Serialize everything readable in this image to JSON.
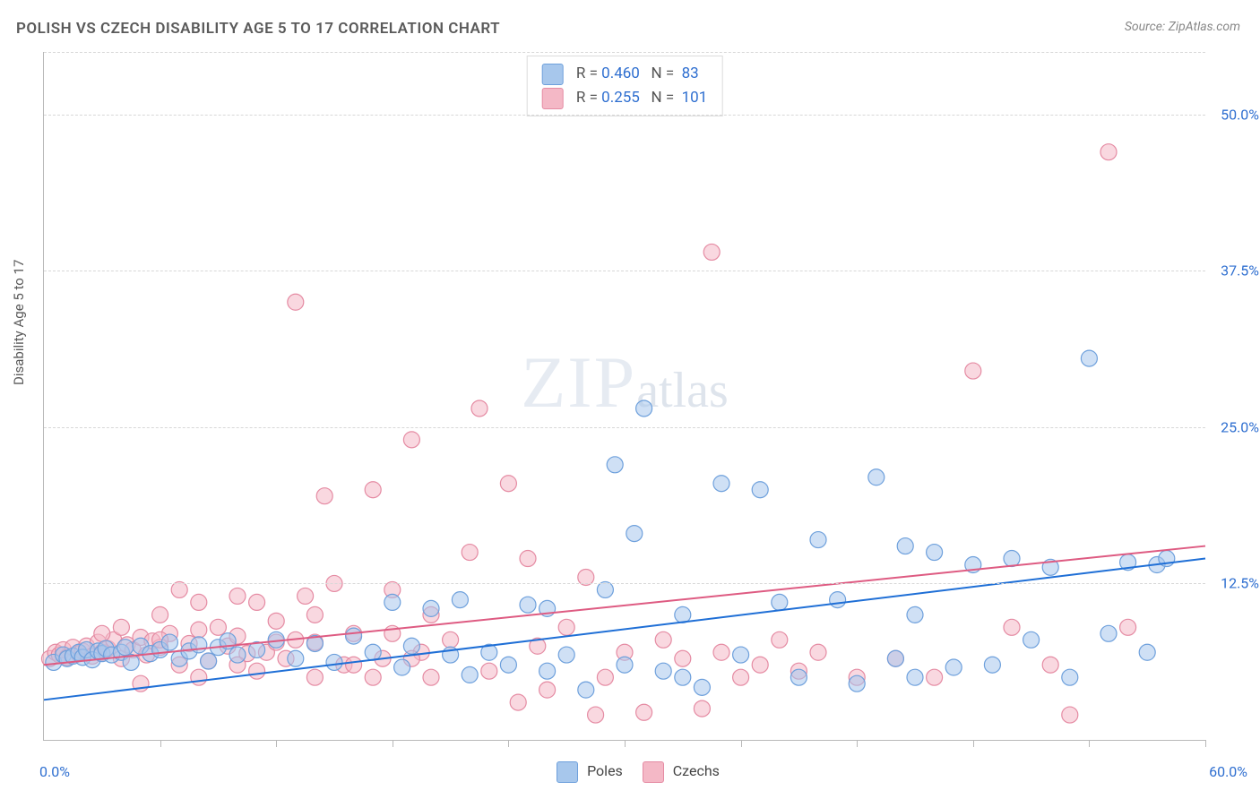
{
  "title": "POLISH VS CZECH DISABILITY AGE 5 TO 17 CORRELATION CHART",
  "source": "Source: ZipAtlas.com",
  "ylabel": "Disability Age 5 to 17",
  "watermark_zip": "ZIP",
  "watermark_atlas": "atlas",
  "chart": {
    "type": "scatter",
    "background_color": "#ffffff",
    "grid_color": "#d8d8d8",
    "axis_color": "#b8b8b8",
    "label_color": "#2f6fd0",
    "xlim": [
      0,
      60
    ],
    "ylim": [
      0,
      55
    ],
    "ytick_values": [
      12.5,
      25.0,
      37.5,
      50.0
    ],
    "ytick_labels": [
      "12.5%",
      "25.0%",
      "37.5%",
      "50.0%"
    ],
    "xtick_values": [
      6,
      12,
      18,
      24,
      30,
      36,
      42,
      48,
      54,
      60
    ],
    "x_origin_label": "0.0%",
    "x_max_label": "60.0%",
    "marker_radius": 9,
    "marker_opacity": 0.55,
    "line_width": 2
  },
  "series": {
    "poles": {
      "label": "Poles",
      "color_fill": "#a7c7ec",
      "color_stroke": "#6ea0dc",
      "line_color": "#1f6fd6",
      "R": "0.460",
      "N": "83",
      "trend_y_at_x0": 3.2,
      "trend_y_at_x60": 14.5,
      "points": [
        [
          0.5,
          6.2
        ],
        [
          1,
          6.8
        ],
        [
          1.2,
          6.5
        ],
        [
          1.5,
          6.7
        ],
        [
          1.8,
          7.0
        ],
        [
          2,
          6.6
        ],
        [
          2.2,
          7.2
        ],
        [
          2.5,
          6.4
        ],
        [
          2.8,
          7.1
        ],
        [
          3,
          6.9
        ],
        [
          3.2,
          7.3
        ],
        [
          3.5,
          6.8
        ],
        [
          4,
          7.0
        ],
        [
          4.2,
          7.4
        ],
        [
          4.5,
          6.2
        ],
        [
          5,
          7.5
        ],
        [
          5.5,
          6.9
        ],
        [
          6,
          7.2
        ],
        [
          6.5,
          7.8
        ],
        [
          7,
          6.5
        ],
        [
          7.5,
          7.1
        ],
        [
          8,
          7.6
        ],
        [
          8.5,
          6.3
        ],
        [
          9,
          7.4
        ],
        [
          9.5,
          7.9
        ],
        [
          10,
          6.8
        ],
        [
          11,
          7.2
        ],
        [
          12,
          8.0
        ],
        [
          13,
          6.5
        ],
        [
          14,
          7.7
        ],
        [
          15,
          6.2
        ],
        [
          16,
          8.3
        ],
        [
          17,
          7.0
        ],
        [
          18,
          11.0
        ],
        [
          18.5,
          5.8
        ],
        [
          19,
          7.5
        ],
        [
          20,
          10.5
        ],
        [
          21,
          6.8
        ],
        [
          21.5,
          11.2
        ],
        [
          22,
          5.2
        ],
        [
          23,
          7.0
        ],
        [
          24,
          6.0
        ],
        [
          25,
          10.8
        ],
        [
          26,
          5.5
        ],
        [
          27,
          6.8
        ],
        [
          28,
          4.0
        ],
        [
          29,
          12.0
        ],
        [
          29.5,
          22.0
        ],
        [
          30,
          6.0
        ],
        [
          30.5,
          16.5
        ],
        [
          31,
          26.5
        ],
        [
          32,
          5.5
        ],
        [
          33,
          10.0
        ],
        [
          34,
          4.2
        ],
        [
          35,
          20.5
        ],
        [
          36,
          6.8
        ],
        [
          37,
          20.0
        ],
        [
          38,
          11.0
        ],
        [
          39,
          5.0
        ],
        [
          40,
          16.0
        ],
        [
          41,
          11.2
        ],
        [
          42,
          4.5
        ],
        [
          43,
          21.0
        ],
        [
          44,
          6.5
        ],
        [
          44.5,
          15.5
        ],
        [
          45,
          10.0
        ],
        [
          46,
          15.0
        ],
        [
          47,
          5.8
        ],
        [
          48,
          14.0
        ],
        [
          49,
          6.0
        ],
        [
          50,
          14.5
        ],
        [
          51,
          8.0
        ],
        [
          52,
          13.8
        ],
        [
          53,
          5.0
        ],
        [
          54,
          30.5
        ],
        [
          55,
          8.5
        ],
        [
          56,
          14.2
        ],
        [
          57,
          7.0
        ],
        [
          57.5,
          14.0
        ],
        [
          58,
          14.5
        ],
        [
          45,
          5.0
        ],
        [
          33,
          5.0
        ],
        [
          26,
          10.5
        ]
      ]
    },
    "czechs": {
      "label": "Czechs",
      "color_fill": "#f4b8c6",
      "color_stroke": "#e58ba3",
      "line_color": "#de5b82",
      "R": "0.255",
      "N": "101",
      "trend_y_at_x0": 6.0,
      "trend_y_at_x60": 15.5,
      "points": [
        [
          0.3,
          6.5
        ],
        [
          0.6,
          7.0
        ],
        [
          0.8,
          6.8
        ],
        [
          1,
          7.2
        ],
        [
          1.2,
          6.6
        ],
        [
          1.5,
          7.4
        ],
        [
          1.8,
          6.9
        ],
        [
          2,
          7.1
        ],
        [
          2.2,
          7.5
        ],
        [
          2.5,
          6.7
        ],
        [
          2.8,
          7.8
        ],
        [
          3,
          7.0
        ],
        [
          3.3,
          7.3
        ],
        [
          3.6,
          8.0
        ],
        [
          4,
          6.5
        ],
        [
          4.3,
          7.6
        ],
        [
          4.6,
          7.2
        ],
        [
          5,
          8.2
        ],
        [
          5.3,
          6.8
        ],
        [
          5.6,
          7.9
        ],
        [
          6,
          7.4
        ],
        [
          6.5,
          8.5
        ],
        [
          7,
          6.0
        ],
        [
          7.5,
          7.7
        ],
        [
          8,
          8.8
        ],
        [
          8.5,
          6.3
        ],
        [
          9,
          9.0
        ],
        [
          9.5,
          7.5
        ],
        [
          10,
          8.3
        ],
        [
          10.5,
          6.9
        ],
        [
          11,
          11.0
        ],
        [
          11.5,
          7.0
        ],
        [
          12,
          9.5
        ],
        [
          12.5,
          6.5
        ],
        [
          13,
          35.0
        ],
        [
          13.5,
          11.5
        ],
        [
          14,
          7.8
        ],
        [
          14.5,
          19.5
        ],
        [
          15,
          12.5
        ],
        [
          15.5,
          6.0
        ],
        [
          16,
          8.5
        ],
        [
          17,
          20.0
        ],
        [
          17.5,
          6.5
        ],
        [
          18,
          12.0
        ],
        [
          19,
          24.0
        ],
        [
          19.5,
          7.0
        ],
        [
          20,
          10.0
        ],
        [
          21,
          8.0
        ],
        [
          22,
          15.0
        ],
        [
          22.5,
          26.5
        ],
        [
          23,
          5.5
        ],
        [
          24,
          20.5
        ],
        [
          24.5,
          3.0
        ],
        [
          25,
          14.5
        ],
        [
          25.5,
          7.5
        ],
        [
          26,
          4.0
        ],
        [
          27,
          9.0
        ],
        [
          28,
          13.0
        ],
        [
          28.5,
          2.0
        ],
        [
          29,
          5.0
        ],
        [
          30,
          7.0
        ],
        [
          31,
          2.2
        ],
        [
          32,
          8.0
        ],
        [
          33,
          6.5
        ],
        [
          34,
          2.5
        ],
        [
          34.5,
          39.0
        ],
        [
          35,
          7.0
        ],
        [
          36,
          5.0
        ],
        [
          37,
          6.0
        ],
        [
          38,
          8.0
        ],
        [
          39,
          5.5
        ],
        [
          40,
          7.0
        ],
        [
          42,
          5.0
        ],
        [
          44,
          6.5
        ],
        [
          46,
          5.0
        ],
        [
          48,
          29.5
        ],
        [
          50,
          9.0
        ],
        [
          52,
          6.0
        ],
        [
          53,
          2.0
        ],
        [
          55,
          47.0
        ],
        [
          56,
          9.0
        ],
        [
          5,
          4.5
        ],
        [
          6,
          10.0
        ],
        [
          7,
          12.0
        ],
        [
          8,
          5.0
        ],
        [
          10,
          11.5
        ],
        [
          11,
          5.5
        ],
        [
          13,
          8.0
        ],
        [
          14,
          5.0
        ],
        [
          16,
          6.0
        ],
        [
          18,
          8.5
        ],
        [
          20,
          5.0
        ],
        [
          3,
          8.5
        ],
        [
          4,
          9.0
        ],
        [
          6,
          8.0
        ],
        [
          8,
          11.0
        ],
        [
          10,
          6.0
        ],
        [
          12,
          7.8
        ],
        [
          14,
          10.0
        ],
        [
          17,
          5.0
        ],
        [
          19,
          6.5
        ]
      ]
    }
  }
}
